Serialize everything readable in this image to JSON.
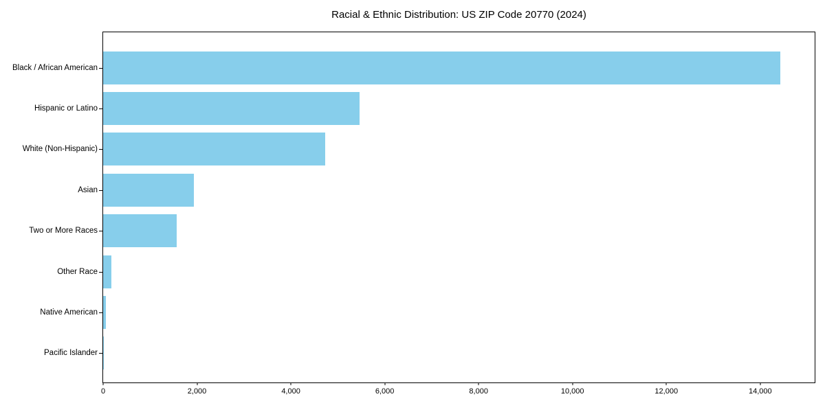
{
  "chart_data": {
    "type": "bar",
    "orientation": "horizontal",
    "title": "Racial & Ethnic Distribution: US ZIP Code 20770 (2024)",
    "categories": [
      "Black / African American",
      "Hispanic or Latino",
      "White (Non-Hispanic)",
      "Asian",
      "Two or More Races",
      "Other Race",
      "Native American",
      "Pacific Islander"
    ],
    "values": [
      14430,
      5460,
      4730,
      1930,
      1560,
      175,
      58,
      14
    ],
    "xlabel": "",
    "ylabel": "",
    "xlim": [
      0,
      15160
    ],
    "x_ticks": [
      0,
      2000,
      4000,
      6000,
      8000,
      10000,
      12000,
      14000
    ],
    "x_tick_labels": [
      "0",
      "2,000",
      "4,000",
      "6,000",
      "8,000",
      "10,000",
      "12,000",
      "14,000"
    ],
    "bar_color": "#87CEEB",
    "axis_color": "#000000",
    "background_color": "#FFFFFF",
    "grid": false,
    "legend": null
  }
}
